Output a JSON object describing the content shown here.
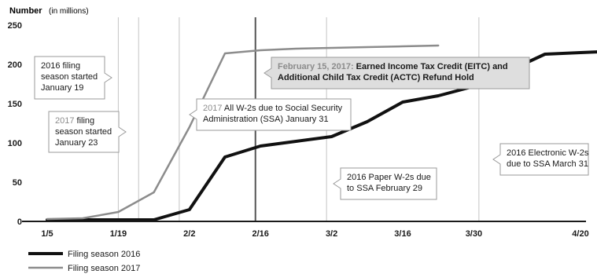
{
  "chart_data": {
    "type": "line",
    "ylabel": "Number",
    "ylabel_unit": "(in millions)",
    "ylim": [
      0,
      250
    ],
    "yticks": [
      0,
      50,
      100,
      150,
      200,
      250
    ],
    "x_domain_days": [
      1,
      115
    ],
    "xticks": [
      {
        "day": 5,
        "label": "1/5"
      },
      {
        "day": 19,
        "label": "1/19"
      },
      {
        "day": 33,
        "label": "2/2"
      },
      {
        "day": 47,
        "label": "2/16"
      },
      {
        "day": 61,
        "label": "3/2"
      },
      {
        "day": 75,
        "label": "3/16"
      },
      {
        "day": 89,
        "label": "3/30"
      },
      {
        "day": 110,
        "label": "4/20"
      }
    ],
    "series": [
      {
        "name": "Filing season 2016",
        "color": "#111111",
        "points": [
          [
            5,
            2
          ],
          [
            12,
            2
          ],
          [
            19,
            2
          ],
          [
            26,
            2
          ],
          [
            33,
            15
          ],
          [
            40,
            82
          ],
          [
            47,
            96
          ],
          [
            54,
            102
          ],
          [
            61,
            108
          ],
          [
            68,
            127
          ],
          [
            75,
            152
          ],
          [
            82,
            160
          ],
          [
            89,
            172
          ],
          [
            96,
            192
          ],
          [
            103,
            213
          ],
          [
            110,
            215
          ],
          [
            117,
            217
          ]
        ]
      },
      {
        "name": "Filing season 2017",
        "color": "#8c8c8c",
        "points": [
          [
            5,
            3
          ],
          [
            12,
            4
          ],
          [
            19,
            12
          ],
          [
            26,
            37
          ],
          [
            33,
            120
          ],
          [
            40,
            214
          ],
          [
            47,
            218
          ],
          [
            54,
            220
          ],
          [
            61,
            221
          ],
          [
            68,
            222
          ],
          [
            75,
            223
          ],
          [
            82,
            224
          ]
        ]
      }
    ],
    "vlines": [
      {
        "day": 19,
        "style": "thin"
      },
      {
        "day": 23,
        "style": "thin"
      },
      {
        "day": 31,
        "style": "thin"
      },
      {
        "day": 46,
        "style": "thick"
      },
      {
        "day": 60,
        "style": "thin"
      },
      {
        "day": 90,
        "style": "thin"
      }
    ],
    "annotations": [
      {
        "id": "a2016start",
        "year": "2016",
        "year_color": "black",
        "lines": [
          "2016 filing",
          "season started",
          "January 19"
        ],
        "pointer": "right",
        "shaded": false
      },
      {
        "id": "a2017start",
        "year": "2017",
        "year_color": "gray",
        "lines": [
          "2017 filing",
          "season started",
          "January 23"
        ],
        "pointer": "right",
        "shaded": false
      },
      {
        "id": "aw2",
        "year": "2017",
        "year_color": "gray",
        "lines": [
          "2017 All W-2s due to Social Security",
          "Administration (SSA) January 31"
        ],
        "pointer": "left",
        "shaded": false
      },
      {
        "id": "aeitc",
        "year": "February 15, 2017:",
        "year_color": "gray",
        "lines": [
          "February 15, 2017: Earned Income Tax Credit (EITC) and",
          "Additional Child Tax Credit (ACTC) Refund Hold"
        ],
        "pointer": "left",
        "shaded": true,
        "bold": true
      },
      {
        "id": "apaper",
        "year": "2016",
        "year_color": "black",
        "lines": [
          "2016 Paper W-2s due",
          "to SSA February 29"
        ],
        "pointer": "left",
        "shaded": false
      },
      {
        "id": "aelec",
        "year": "2016",
        "year_color": "black",
        "lines": [
          "2016 Electronic W-2s",
          "due to SSA March 31"
        ],
        "pointer": "left",
        "shaded": false
      }
    ]
  }
}
